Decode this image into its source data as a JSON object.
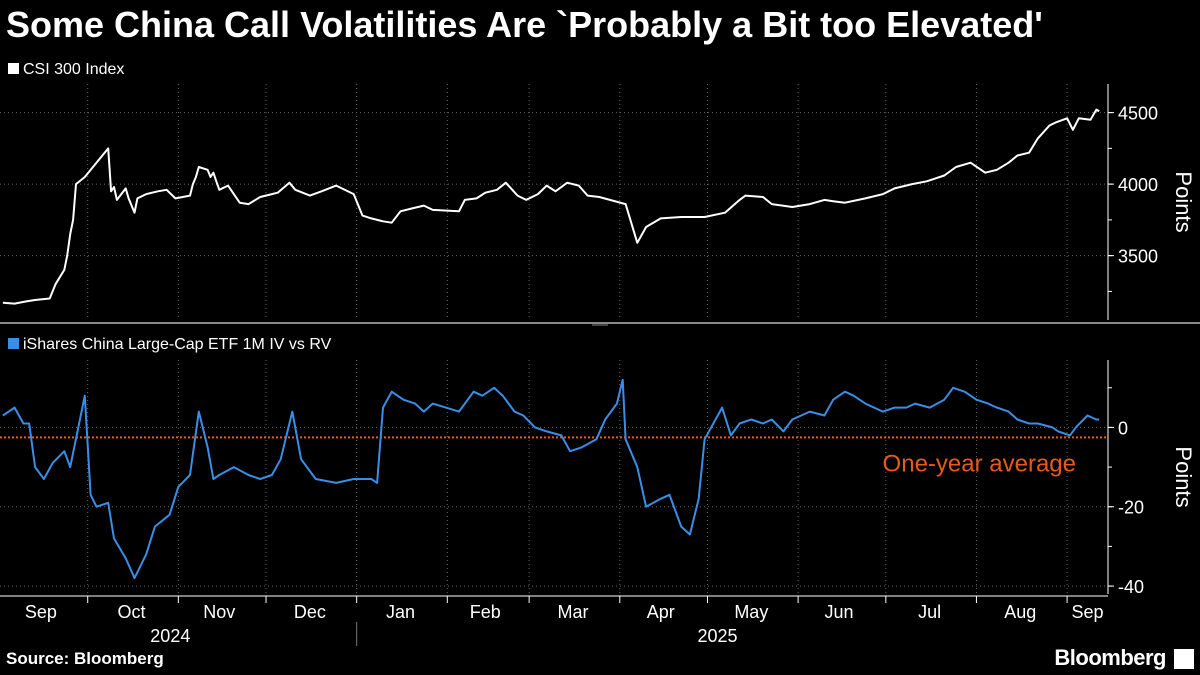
{
  "title": "Some China Call Volatilities Are `Probably a Bit too Elevated'",
  "source": "Source: Bloomberg",
  "brand": "Bloomberg",
  "colors": {
    "csi": "#ffffff",
    "etf": "#3a8ee6",
    "average": "#e8591a",
    "grid": "#666666"
  },
  "chart_data": [
    {
      "type": "line",
      "panel": "top",
      "ylabel": "Points",
      "ylim": [
        3050,
        4700
      ],
      "yticks": [
        3500,
        4000,
        4500
      ],
      "grid": true,
      "series": [
        {
          "name": "CSI 300 Index",
          "points": [
            [
              "2024-09-02",
              3170
            ],
            [
              "2024-09-06",
              3165
            ],
            [
              "2024-09-10",
              3180
            ],
            [
              "2024-09-13",
              3190
            ],
            [
              "2024-09-18",
              3200
            ],
            [
              "2024-09-20",
              3300
            ],
            [
              "2024-09-23",
              3400
            ],
            [
              "2024-09-24",
              3500
            ],
            [
              "2024-09-25",
              3650
            ],
            [
              "2024-09-26",
              3750
            ],
            [
              "2024-09-27",
              4000
            ],
            [
              "2024-09-30",
              4050
            ],
            [
              "2024-10-08",
              4250
            ],
            [
              "2024-10-09",
              3950
            ],
            [
              "2024-10-10",
              3980
            ],
            [
              "2024-10-11",
              3890
            ],
            [
              "2024-10-14",
              3970
            ],
            [
              "2024-10-15",
              3900
            ],
            [
              "2024-10-16",
              3850
            ],
            [
              "2024-10-17",
              3800
            ],
            [
              "2024-10-18",
              3900
            ],
            [
              "2024-10-21",
              3930
            ],
            [
              "2024-10-25",
              3950
            ],
            [
              "2024-10-28",
              3960
            ],
            [
              "2024-10-31",
              3900
            ],
            [
              "2024-11-05",
              3920
            ],
            [
              "2024-11-06",
              4000
            ],
            [
              "2024-11-07",
              4050
            ],
            [
              "2024-11-08",
              4120
            ],
            [
              "2024-11-11",
              4100
            ],
            [
              "2024-11-12",
              4050
            ],
            [
              "2024-11-13",
              4080
            ],
            [
              "2024-11-14",
              4020
            ],
            [
              "2024-11-15",
              3960
            ],
            [
              "2024-11-18",
              3990
            ],
            [
              "2024-11-22",
              3870
            ],
            [
              "2024-11-25",
              3860
            ],
            [
              "2024-11-29",
              3910
            ],
            [
              "2024-12-03",
              3930
            ],
            [
              "2024-12-05",
              3940
            ],
            [
              "2024-12-09",
              4010
            ],
            [
              "2024-12-11",
              3960
            ],
            [
              "2024-12-16",
              3920
            ],
            [
              "2024-12-20",
              3950
            ],
            [
              "2024-12-25",
              3990
            ],
            [
              "2024-12-31",
              3930
            ],
            [
              "2025-01-03",
              3780
            ],
            [
              "2025-01-06",
              3760
            ],
            [
              "2025-01-10",
              3740
            ],
            [
              "2025-01-13",
              3730
            ],
            [
              "2025-01-16",
              3810
            ],
            [
              "2025-01-20",
              3830
            ],
            [
              "2025-01-24",
              3850
            ],
            [
              "2025-01-27",
              3820
            ],
            [
              "2025-02-05",
              3810
            ],
            [
              "2025-02-07",
              3890
            ],
            [
              "2025-02-11",
              3900
            ],
            [
              "2025-02-14",
              3940
            ],
            [
              "2025-02-18",
              3960
            ],
            [
              "2025-02-21",
              4010
            ],
            [
              "2025-02-25",
              3920
            ],
            [
              "2025-02-28",
              3890
            ],
            [
              "2025-03-04",
              3930
            ],
            [
              "2025-03-07",
              3990
            ],
            [
              "2025-03-10",
              3950
            ],
            [
              "2025-03-14",
              4010
            ],
            [
              "2025-03-18",
              3990
            ],
            [
              "2025-03-21",
              3920
            ],
            [
              "2025-03-25",
              3910
            ],
            [
              "2025-04-03",
              3860
            ],
            [
              "2025-04-07",
              3590
            ],
            [
              "2025-04-10",
              3700
            ],
            [
              "2025-04-15",
              3760
            ],
            [
              "2025-04-22",
              3770
            ],
            [
              "2025-04-30",
              3770
            ],
            [
              "2025-05-07",
              3800
            ],
            [
              "2025-05-12",
              3890
            ],
            [
              "2025-05-14",
              3920
            ],
            [
              "2025-05-20",
              3910
            ],
            [
              "2025-05-23",
              3860
            ],
            [
              "2025-05-30",
              3840
            ],
            [
              "2025-06-05",
              3860
            ],
            [
              "2025-06-10",
              3890
            ],
            [
              "2025-06-13",
              3880
            ],
            [
              "2025-06-17",
              3870
            ],
            [
              "2025-06-24",
              3900
            ],
            [
              "2025-06-30",
              3930
            ],
            [
              "2025-07-04",
              3970
            ],
            [
              "2025-07-10",
              4000
            ],
            [
              "2025-07-15",
              4020
            ],
            [
              "2025-07-21",
              4060
            ],
            [
              "2025-07-25",
              4120
            ],
            [
              "2025-07-30",
              4150
            ],
            [
              "2025-08-04",
              4080
            ],
            [
              "2025-08-08",
              4100
            ],
            [
              "2025-08-12",
              4150
            ],
            [
              "2025-08-15",
              4200
            ],
            [
              "2025-08-19",
              4220
            ],
            [
              "2025-08-22",
              4320
            ],
            [
              "2025-08-26",
              4410
            ],
            [
              "2025-08-28",
              4430
            ],
            [
              "2025-09-01",
              4460
            ],
            [
              "2025-09-03",
              4380
            ],
            [
              "2025-09-05",
              4460
            ],
            [
              "2025-09-09",
              4450
            ],
            [
              "2025-09-11",
              4520
            ],
            [
              "2025-09-12",
              4510
            ]
          ]
        }
      ]
    },
    {
      "type": "line",
      "panel": "bottom",
      "ylabel": "Points",
      "ylim": [
        -42,
        17
      ],
      "yticks": [
        -40,
        -20,
        0
      ],
      "grid": true,
      "annotation": {
        "text": "One-year average",
        "y": -2.5
      },
      "series": [
        {
          "name": "iShares China Large-Cap ETF 1M IV vs RV",
          "points": [
            [
              "2024-09-02",
              3
            ],
            [
              "2024-09-06",
              5
            ],
            [
              "2024-09-09",
              1
            ],
            [
              "2024-09-11",
              1
            ],
            [
              "2024-09-13",
              -10
            ],
            [
              "2024-09-16",
              -13
            ],
            [
              "2024-09-19",
              -9
            ],
            [
              "2024-09-23",
              -6
            ],
            [
              "2024-09-25",
              -10
            ],
            [
              "2024-09-30",
              8
            ],
            [
              "2024-10-02",
              -17
            ],
            [
              "2024-10-04",
              -20
            ],
            [
              "2024-10-08",
              -19
            ],
            [
              "2024-10-10",
              -28
            ],
            [
              "2024-10-14",
              -33
            ],
            [
              "2024-10-17",
              -38
            ],
            [
              "2024-10-21",
              -32
            ],
            [
              "2024-10-24",
              -25
            ],
            [
              "2024-10-29",
              -22
            ],
            [
              "2024-11-01",
              -15
            ],
            [
              "2024-11-05",
              -12
            ],
            [
              "2024-11-08",
              4
            ],
            [
              "2024-11-11",
              -5
            ],
            [
              "2024-11-13",
              -13
            ],
            [
              "2024-11-15",
              -12
            ],
            [
              "2024-11-20",
              -10
            ],
            [
              "2024-11-25",
              -12
            ],
            [
              "2024-11-29",
              -13
            ],
            [
              "2024-12-03",
              -12
            ],
            [
              "2024-12-06",
              -8
            ],
            [
              "2024-12-10",
              4
            ],
            [
              "2024-12-13",
              -8
            ],
            [
              "2024-12-18",
              -13
            ],
            [
              "2024-12-25",
              -14
            ],
            [
              "2024-12-31",
              -13
            ],
            [
              "2025-01-06",
              -13
            ],
            [
              "2025-01-08",
              -14
            ],
            [
              "2025-01-10",
              5
            ],
            [
              "2025-01-13",
              9
            ],
            [
              "2025-01-17",
              7
            ],
            [
              "2025-01-21",
              6
            ],
            [
              "2025-01-24",
              4
            ],
            [
              "2025-01-27",
              6
            ],
            [
              "2025-02-05",
              4
            ],
            [
              "2025-02-10",
              9
            ],
            [
              "2025-02-13",
              8
            ],
            [
              "2025-02-17",
              10
            ],
            [
              "2025-02-20",
              8
            ],
            [
              "2025-02-24",
              4
            ],
            [
              "2025-02-27",
              3
            ],
            [
              "2025-03-03",
              0
            ],
            [
              "2025-03-07",
              -1
            ],
            [
              "2025-03-12",
              -2
            ],
            [
              "2025-03-15",
              -6
            ],
            [
              "2025-03-19",
              -5
            ],
            [
              "2025-03-24",
              -3
            ],
            [
              "2025-03-27",
              2
            ],
            [
              "2025-03-31",
              6
            ],
            [
              "2025-04-02",
              12
            ],
            [
              "2025-04-03",
              -3
            ],
            [
              "2025-04-07",
              -10
            ],
            [
              "2025-04-10",
              -20
            ],
            [
              "2025-04-15",
              -18
            ],
            [
              "2025-04-18",
              -17
            ],
            [
              "2025-04-22",
              -25
            ],
            [
              "2025-04-25",
              -27
            ],
            [
              "2025-04-28",
              -18
            ],
            [
              "2025-04-30",
              -3
            ],
            [
              "2025-05-06",
              5
            ],
            [
              "2025-05-09",
              -2
            ],
            [
              "2025-05-12",
              1
            ],
            [
              "2025-05-16",
              2
            ],
            [
              "2025-05-20",
              1
            ],
            [
              "2025-05-23",
              2
            ],
            [
              "2025-05-27",
              -1
            ],
            [
              "2025-05-30",
              2
            ],
            [
              "2025-06-05",
              4
            ],
            [
              "2025-06-10",
              3
            ],
            [
              "2025-06-13",
              7
            ],
            [
              "2025-06-17",
              9
            ],
            [
              "2025-06-20",
              8
            ],
            [
              "2025-06-24",
              6
            ],
            [
              "2025-06-30",
              4
            ],
            [
              "2025-07-04",
              5
            ],
            [
              "2025-07-08",
              5
            ],
            [
              "2025-07-11",
              6
            ],
            [
              "2025-07-16",
              5
            ],
            [
              "2025-07-21",
              7
            ],
            [
              "2025-07-24",
              10
            ],
            [
              "2025-07-28",
              9
            ],
            [
              "2025-08-01",
              7
            ],
            [
              "2025-08-05",
              6
            ],
            [
              "2025-08-08",
              5
            ],
            [
              "2025-08-12",
              4
            ],
            [
              "2025-08-15",
              2
            ],
            [
              "2025-08-19",
              1
            ],
            [
              "2025-08-22",
              1
            ],
            [
              "2025-08-27",
              0
            ],
            [
              "2025-08-29",
              -1
            ],
            [
              "2025-09-02",
              -2
            ],
            [
              "2025-09-04",
              0
            ],
            [
              "2025-09-08",
              3
            ],
            [
              "2025-09-11",
              2
            ],
            [
              "2025-09-12",
              2
            ]
          ]
        }
      ]
    }
  ],
  "x_axis": {
    "months": [
      {
        "label": "Sep",
        "date": "2024-09-15"
      },
      {
        "label": "Oct",
        "date": "2024-10-16"
      },
      {
        "label": "Nov",
        "date": "2024-11-15"
      },
      {
        "label": "Dec",
        "date": "2024-12-16"
      },
      {
        "label": "Jan",
        "date": "2025-01-16"
      },
      {
        "label": "Feb",
        "date": "2025-02-14"
      },
      {
        "label": "Mar",
        "date": "2025-03-16"
      },
      {
        "label": "Apr",
        "date": "2025-04-15"
      },
      {
        "label": "May",
        "date": "2025-05-16"
      },
      {
        "label": "Jun",
        "date": "2025-06-15"
      },
      {
        "label": "Jul",
        "date": "2025-07-16"
      },
      {
        "label": "Aug",
        "date": "2025-08-16"
      },
      {
        "label": "Sep",
        "date": "2025-09-08"
      }
    ],
    "gridlines": [
      "2024-10-01",
      "2024-11-01",
      "2024-12-01",
      "2025-01-01",
      "2025-02-01",
      "2025-03-01",
      "2025-04-01",
      "2025-05-01",
      "2025-06-01",
      "2025-07-01",
      "2025-08-01",
      "2025-09-01"
    ],
    "years": [
      {
        "label": "2024",
        "date": "2024-11-01"
      },
      {
        "label": "2025",
        "date": "2025-05-01"
      }
    ],
    "year_divider": "2025-01-01",
    "range": [
      "2024-09-01",
      "2025-09-15"
    ]
  }
}
